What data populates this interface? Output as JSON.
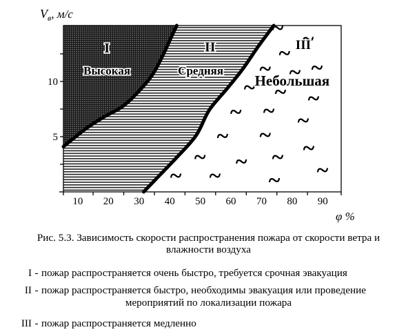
{
  "figure": {
    "caption_line1": "Рис. 5.3. Зависимость скорости распространения пожара от скорости ветра и",
    "caption_line2": "влажности воздуха",
    "legend": [
      {
        "numeral": "I",
        "dash": "-",
        "text": "пожар распространяется очень быстро, требуется срочная эвакуация",
        "text2": ""
      },
      {
        "numeral": "II",
        "dash": "-",
        "text": "пожар распространяется быстро, необходимы эвакуация или проведение",
        "text2": "мероприятий по локализации пожара"
      },
      {
        "numeral": "III",
        "dash": "-",
        "text": "пожар распространяется медленно",
        "text2": ""
      }
    ]
  },
  "chart_data": {
    "type": "area",
    "title": "",
    "xlabel": "φ %",
    "ylabel": "Vв, м/с",
    "xlim": [
      5.3,
      96
    ],
    "ylim": [
      0,
      15.06
    ],
    "grid": false,
    "x_axis": {
      "title": "φ %",
      "tick_values": [
        10,
        20,
        30,
        40,
        50,
        60,
        70,
        80,
        90
      ],
      "tick_labels": [
        "10",
        "20",
        "30",
        "40",
        "50",
        "60",
        "70",
        "80",
        "90"
      ],
      "minor_ticks": [
        5.3,
        15,
        25,
        35,
        45,
        55,
        65,
        75,
        85,
        96
      ]
    },
    "y_axis": {
      "title_main": "V",
      "title_sub": "в",
      "title_rest": ", м/с",
      "tick_values": [
        5,
        10
      ],
      "tick_labels": [
        "5",
        "10"
      ],
      "ticks": [
        2.5,
        5,
        7.5,
        10,
        12.5
      ]
    },
    "boundary_I_II": [
      [
        5.3,
        4.1
      ],
      [
        12.5,
        5.7
      ],
      [
        18.6,
        6.8
      ],
      [
        25.4,
        7.9
      ],
      [
        33.3,
        10.2
      ],
      [
        37.3,
        12.1
      ],
      [
        40.5,
        14.0
      ],
      [
        42.3,
        15.06
      ]
    ],
    "boundary_II_III": [
      [
        31.5,
        0
      ],
      [
        36,
        1.3
      ],
      [
        41.9,
        3.0
      ],
      [
        48.6,
        5.1
      ],
      [
        52.9,
        7.4
      ],
      [
        58.6,
        9.3
      ],
      [
        63.8,
        11.1
      ],
      [
        69,
        13.2
      ],
      [
        74,
        15.06
      ]
    ],
    "regions": [
      {
        "id": "I",
        "numeral": "I",
        "numeral_pos": [
          19.5,
          13.0
        ],
        "numeral_size": 20,
        "name": "Высокая",
        "name_pos": [
          19.5,
          11.0
        ],
        "name_size": 17,
        "pattern": "dense-mesh",
        "polygon": [
          [
            5.3,
            4.1
          ],
          [
            12.5,
            5.7
          ],
          [
            18.6,
            6.8
          ],
          [
            25.4,
            7.9
          ],
          [
            33.3,
            10.2
          ],
          [
            37.3,
            12.1
          ],
          [
            40.5,
            14.0
          ],
          [
            42.3,
            15.06
          ],
          [
            5.3,
            15.06
          ]
        ]
      },
      {
        "id": "II",
        "numeral": "II",
        "numeral_pos": [
          53.2,
          13.1
        ],
        "numeral_size": 20,
        "name": "Средняя",
        "name_pos": [
          50.1,
          11.0
        ],
        "name_size": 17,
        "pattern": "h-lines",
        "polygon": [
          [
            5.3,
            4.1
          ],
          [
            12.5,
            5.7
          ],
          [
            18.6,
            6.8
          ],
          [
            25.4,
            7.9
          ],
          [
            33.3,
            10.2
          ],
          [
            37.3,
            12.1
          ],
          [
            40.5,
            14.0
          ],
          [
            42.3,
            15.06
          ],
          [
            74,
            15.06
          ],
          [
            69,
            13.2
          ],
          [
            63.8,
            11.1
          ],
          [
            58.6,
            9.3
          ],
          [
            52.9,
            7.4
          ],
          [
            48.6,
            5.1
          ],
          [
            41.9,
            3.0
          ],
          [
            36,
            1.3
          ],
          [
            31.5,
            0
          ],
          [
            5.3,
            0
          ]
        ]
      },
      {
        "id": "III",
        "numeral": "III",
        "numeral_pos": [
          83.6,
          13.3
        ],
        "numeral_size": 19,
        "name": "Небольшая",
        "name_pos": [
          80,
          10.0
        ],
        "name_size": 21,
        "pattern": "plain",
        "polygon": [
          [
            31.5,
            0
          ],
          [
            36,
            1.3
          ],
          [
            41.9,
            3.0
          ],
          [
            48.6,
            5.1
          ],
          [
            52.9,
            7.4
          ],
          [
            58.6,
            9.3
          ],
          [
            63.8,
            11.1
          ],
          [
            69,
            13.2
          ],
          [
            74,
            15.06
          ],
          [
            96,
            15.06
          ],
          [
            96,
            0
          ]
        ]
      }
    ],
    "tildes": [
      [
        75.3,
        14.7
      ],
      [
        85.2,
        13.7
      ],
      [
        77.5,
        12.4
      ],
      [
        71.2,
        11.0
      ],
      [
        80.9,
        10.7
      ],
      [
        88.1,
        11.1
      ],
      [
        66.1,
        9.3
      ],
      [
        76.2,
        8.9
      ],
      [
        87.0,
        8.3
      ],
      [
        61.6,
        7.1
      ],
      [
        72.4,
        7.2
      ],
      [
        83.6,
        6.3
      ],
      [
        57.3,
        4.9
      ],
      [
        71.2,
        5.0
      ],
      [
        85.4,
        3.8
      ],
      [
        49.9,
        3.0
      ],
      [
        63.4,
        2.6
      ],
      [
        75.3,
        3.0
      ],
      [
        54.8,
        1.3
      ],
      [
        74.2,
        0.9
      ],
      [
        89.9,
        1.8
      ],
      [
        42.0,
        1.3
      ]
    ]
  }
}
